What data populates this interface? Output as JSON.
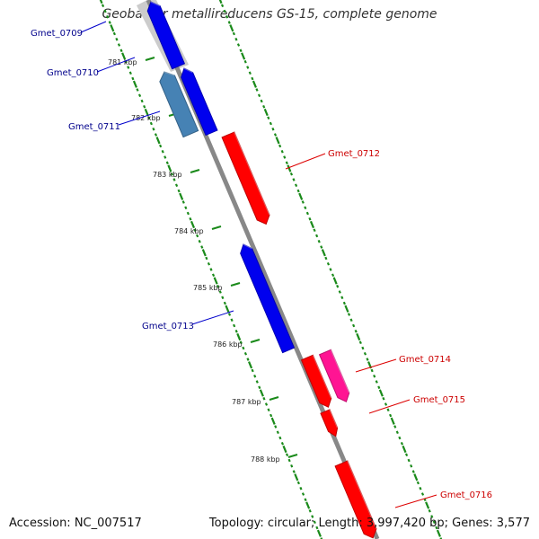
{
  "title": "Geobacter metallireducens GS-15, complete genome",
  "footer": {
    "accession": "Accession: NC_007517",
    "summary": "Topology: circular; Length: 3,997,420 bp; Genes: 3,577"
  },
  "ticks": [
    "781 kbp",
    "782 kbp",
    "783 kbp",
    "784 kbp",
    "785 kbp",
    "786 kbp",
    "787 kbp",
    "788 kbp"
  ],
  "genes": [
    {
      "name": "Gmet_0709",
      "strand": "reverse",
      "color": "#0000ee"
    },
    {
      "name": "Gmet_0710",
      "strand": "reverse",
      "color": "#0000ee"
    },
    {
      "name": "Gmet_0711",
      "strand": "reverse",
      "color": "#4682b4"
    },
    {
      "name": "Gmet_0712",
      "strand": "forward",
      "color": "#ff0000"
    },
    {
      "name": "Gmet_0713",
      "strand": "reverse",
      "color": "#0000ee"
    },
    {
      "name": "Gmet_0714",
      "strand": "forward",
      "color": "#ff1493"
    },
    {
      "name": "Gmet_0715",
      "strand": "forward",
      "color": "#ff0000"
    },
    {
      "name": "Gmet_0716",
      "strand": "forward",
      "color": "#ff0000"
    }
  ],
  "colors": {
    "backbone": "#888888",
    "tick": "#1a8a1a",
    "reverse_label": "#00008b",
    "forward_label": "#cc0000"
  }
}
